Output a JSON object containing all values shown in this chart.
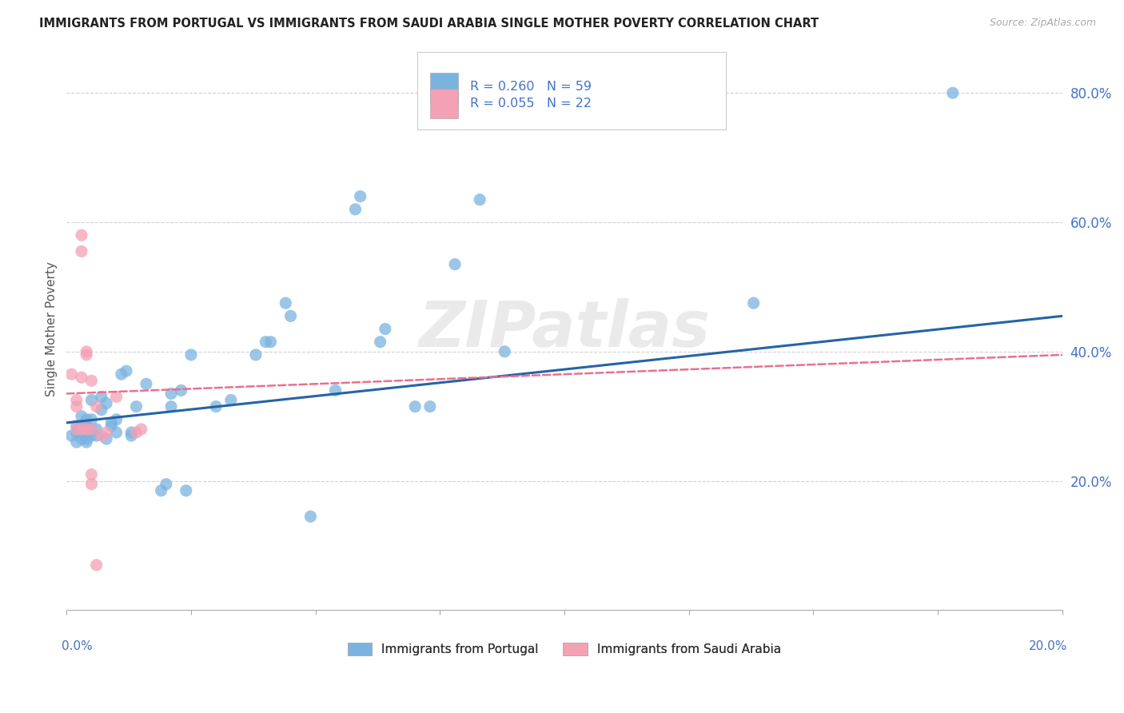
{
  "title": "IMMIGRANTS FROM PORTUGAL VS IMMIGRANTS FROM SAUDI ARABIA SINGLE MOTHER POVERTY CORRELATION CHART",
  "source": "Source: ZipAtlas.com",
  "ylabel": "Single Mother Poverty",
  "watermark": "ZIPatlas",
  "plot_color_portugal": "#7ab3e0",
  "plot_color_saudi": "#f4a0b5",
  "line_color_portugal": "#2563a8",
  "line_color_saudi": "#e87090",
  "bg_color": "#ffffff",
  "grid_color": "#cccccc",
  "title_color": "#222222",
  "axis_label_color": "#4472c4",
  "figsize": [
    14.06,
    8.92
  ],
  "dpi": 100,
  "portugal_scatter": [
    [
      0.001,
      0.27
    ],
    [
      0.002,
      0.26
    ],
    [
      0.002,
      0.275
    ],
    [
      0.002,
      0.285
    ],
    [
      0.003,
      0.265
    ],
    [
      0.003,
      0.275
    ],
    [
      0.003,
      0.285
    ],
    [
      0.003,
      0.3
    ],
    [
      0.004,
      0.26
    ],
    [
      0.004,
      0.265
    ],
    [
      0.004,
      0.285
    ],
    [
      0.004,
      0.295
    ],
    [
      0.005,
      0.27
    ],
    [
      0.005,
      0.28
    ],
    [
      0.005,
      0.295
    ],
    [
      0.005,
      0.325
    ],
    [
      0.006,
      0.27
    ],
    [
      0.006,
      0.28
    ],
    [
      0.007,
      0.31
    ],
    [
      0.007,
      0.33
    ],
    [
      0.008,
      0.265
    ],
    [
      0.008,
      0.32
    ],
    [
      0.009,
      0.285
    ],
    [
      0.009,
      0.29
    ],
    [
      0.01,
      0.275
    ],
    [
      0.01,
      0.295
    ],
    [
      0.011,
      0.365
    ],
    [
      0.012,
      0.37
    ],
    [
      0.013,
      0.27
    ],
    [
      0.013,
      0.275
    ],
    [
      0.014,
      0.315
    ],
    [
      0.016,
      0.35
    ],
    [
      0.019,
      0.185
    ],
    [
      0.02,
      0.195
    ],
    [
      0.021,
      0.315
    ],
    [
      0.021,
      0.335
    ],
    [
      0.023,
      0.34
    ],
    [
      0.024,
      0.185
    ],
    [
      0.025,
      0.395
    ],
    [
      0.03,
      0.315
    ],
    [
      0.033,
      0.325
    ],
    [
      0.038,
      0.395
    ],
    [
      0.04,
      0.415
    ],
    [
      0.041,
      0.415
    ],
    [
      0.044,
      0.475
    ],
    [
      0.045,
      0.455
    ],
    [
      0.049,
      0.145
    ],
    [
      0.054,
      0.34
    ],
    [
      0.058,
      0.62
    ],
    [
      0.059,
      0.64
    ],
    [
      0.063,
      0.415
    ],
    [
      0.064,
      0.435
    ],
    [
      0.07,
      0.315
    ],
    [
      0.073,
      0.315
    ],
    [
      0.078,
      0.535
    ],
    [
      0.083,
      0.635
    ],
    [
      0.088,
      0.4
    ],
    [
      0.138,
      0.475
    ],
    [
      0.178,
      0.8
    ]
  ],
  "saudi_scatter": [
    [
      0.001,
      0.365
    ],
    [
      0.002,
      0.28
    ],
    [
      0.002,
      0.315
    ],
    [
      0.002,
      0.325
    ],
    [
      0.003,
      0.28
    ],
    [
      0.003,
      0.36
    ],
    [
      0.003,
      0.555
    ],
    [
      0.003,
      0.58
    ],
    [
      0.004,
      0.28
    ],
    [
      0.004,
      0.395
    ],
    [
      0.004,
      0.4
    ],
    [
      0.005,
      0.195
    ],
    [
      0.005,
      0.21
    ],
    [
      0.005,
      0.28
    ],
    [
      0.005,
      0.355
    ],
    [
      0.006,
      0.07
    ],
    [
      0.006,
      0.315
    ],
    [
      0.007,
      0.27
    ],
    [
      0.008,
      0.275
    ],
    [
      0.01,
      0.33
    ],
    [
      0.014,
      0.275
    ],
    [
      0.015,
      0.28
    ]
  ],
  "portugal_trendline": [
    0.0,
    0.2,
    0.29,
    0.455
  ],
  "saudi_trendline": [
    0.0,
    0.2,
    0.335,
    0.395
  ],
  "xlim": [
    0.0,
    0.2
  ],
  "ylim": [
    0.0,
    0.87
  ],
  "yticks": [
    0.2,
    0.4,
    0.6,
    0.8
  ],
  "ytick_labels": [
    "20.0%",
    "40.0%",
    "60.0%",
    "80.0%"
  ],
  "ygrid_lines": [
    0.2,
    0.4,
    0.6,
    0.8
  ]
}
